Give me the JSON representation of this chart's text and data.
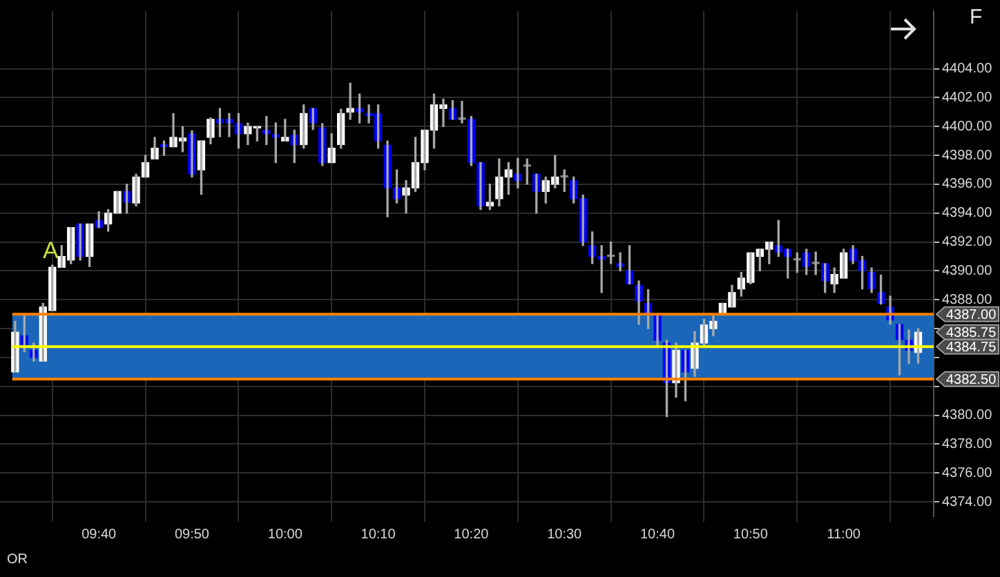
{
  "chart_data": {
    "type": "candlestick",
    "categories": [
      null,
      null,
      null,
      null,
      null,
      null,
      null,
      null,
      null,
      "09:40",
      null,
      null,
      null,
      null,
      null,
      null,
      null,
      null,
      null,
      "09:50",
      null,
      null,
      null,
      null,
      null,
      null,
      null,
      null,
      null,
      "10:00",
      null,
      null,
      null,
      null,
      null,
      null,
      null,
      null,
      null,
      "10:10",
      null,
      null,
      null,
      null,
      null,
      null,
      null,
      null,
      null,
      "10:20",
      null,
      null,
      null,
      null,
      null,
      null,
      null,
      null,
      null,
      "10:30",
      null,
      null,
      null,
      null,
      null,
      null,
      null,
      null,
      null,
      "10:40",
      null,
      null,
      null,
      null,
      null,
      null,
      null,
      null,
      null,
      "10:50",
      null,
      null,
      null,
      null,
      null,
      null,
      null,
      null,
      null,
      "11:00",
      null,
      null,
      null,
      null,
      null,
      null,
      null,
      null
    ],
    "ohlc": [
      [
        4383.0,
        4386.5,
        4383.0,
        4385.75
      ],
      [
        4385.5,
        4387.0,
        4384.4,
        4384.9
      ],
      [
        4384.5,
        4385.0,
        4383.75,
        4384.0
      ],
      [
        4383.75,
        4387.75,
        4383.75,
        4387.5
      ],
      [
        4387.25,
        4390.4,
        4387.25,
        4390.25
      ],
      [
        4390.25,
        4391.75,
        4390.25,
        4391.0
      ],
      [
        4390.75,
        4393.0,
        4390.5,
        4393.0
      ],
      [
        4393.25,
        4393.25,
        4390.75,
        4391.0
      ],
      [
        4391.0,
        4393.25,
        4390.3,
        4393.25
      ],
      [
        4393.5,
        4394.1,
        4393.0,
        4393.0
      ],
      [
        4393.25,
        4394.25,
        4392.75,
        4394.0
      ],
      [
        4394.0,
        4395.5,
        4394.0,
        4395.5
      ],
      [
        4395.5,
        4396.0,
        4394.0,
        4394.75
      ],
      [
        4394.7,
        4396.7,
        4394.5,
        4396.5
      ],
      [
        4396.5,
        4398.0,
        4396.5,
        4397.5
      ],
      [
        4397.75,
        4399.25,
        4397.75,
        4398.5
      ],
      [
        4398.75,
        4399.0,
        4398.0,
        4398.6
      ],
      [
        4398.6,
        4400.9,
        4398.6,
        4399.25
      ],
      [
        4399.0,
        4400.0,
        4398.25,
        4399.2
      ],
      [
        4399.5,
        4399.7,
        4396.5,
        4396.7
      ],
      [
        4397.0,
        4399.0,
        4395.3,
        4399.0
      ],
      [
        4399.25,
        4400.6,
        4398.8,
        4400.5
      ],
      [
        4400.5,
        4401.25,
        4399.3,
        4400.25
      ],
      [
        4400.5,
        4400.9,
        4399.3,
        4400.25
      ],
      [
        4400.2,
        4400.9,
        4398.5,
        4399.5
      ],
      [
        4399.5,
        4400.25,
        4398.75,
        4400.0
      ],
      [
        4399.9,
        4400.0,
        4399.0,
        4400.0
      ],
      [
        4399.75,
        4400.7,
        4398.75,
        4399.5
      ],
      [
        4399.45,
        4400.25,
        4397.5,
        4399.25
      ],
      [
        4399.0,
        4400.5,
        4399.0,
        4399.25
      ],
      [
        4399.4,
        4399.75,
        4397.5,
        4398.75
      ],
      [
        4398.75,
        4401.5,
        4398.5,
        4400.9
      ],
      [
        4401.25,
        4401.25,
        4399.8,
        4400.25
      ],
      [
        4399.9,
        4400.2,
        4397.3,
        4397.5
      ],
      [
        4397.5,
        4399.5,
        4397.5,
        4398.5
      ],
      [
        4398.75,
        4401.2,
        4398.5,
        4400.9
      ],
      [
        4401.0,
        4403.0,
        4400.5,
        4401.25
      ],
      [
        4401.25,
        4402.25,
        4400.25,
        4401.0
      ],
      [
        4400.9,
        4401.5,
        4400.25,
        4400.75
      ],
      [
        4400.9,
        4401.5,
        4398.5,
        4399.0
      ],
      [
        4398.7,
        4399.0,
        4393.75,
        4395.75
      ],
      [
        4395.75,
        4397.0,
        4394.7,
        4395.0
      ],
      [
        4395.25,
        4396.25,
        4394.0,
        4395.75
      ],
      [
        4395.75,
        4399.25,
        4395.5,
        4397.5
      ],
      [
        4397.5,
        4399.75,
        4397.0,
        4399.75
      ],
      [
        4399.75,
        4402.25,
        4398.5,
        4401.5
      ],
      [
        4401.25,
        4401.9,
        4400.0,
        4401.5
      ],
      [
        4401.25,
        4401.8,
        4400.5,
        4400.5
      ],
      [
        4400.5,
        4401.75,
        4400.25,
        4400.5
      ],
      [
        4400.5,
        4400.7,
        4397.3,
        4397.5
      ],
      [
        4397.5,
        4397.5,
        4394.25,
        4394.5
      ],
      [
        4394.5,
        4396.0,
        4394.25,
        4394.75
      ],
      [
        4395.0,
        4397.75,
        4394.5,
        4396.5
      ],
      [
        4396.5,
        4397.5,
        4395.3,
        4397.0
      ],
      [
        4396.7,
        4397.8,
        4395.75,
        4396.25
      ],
      [
        4397.25,
        4397.75,
        4396.0,
        4397.25
      ],
      [
        4396.7,
        4396.7,
        4394.0,
        4395.5
      ],
      [
        4395.5,
        4396.5,
        4394.7,
        4396.25
      ],
      [
        4396.0,
        4398.0,
        4395.75,
        4396.5
      ],
      [
        4396.5,
        4397.0,
        4395.5,
        4396.5
      ],
      [
        4396.25,
        4396.5,
        4394.7,
        4395.0
      ],
      [
        4395.0,
        4395.25,
        4391.75,
        4392.0
      ],
      [
        4391.75,
        4392.7,
        4390.5,
        4391.0
      ],
      [
        4391.0,
        4391.75,
        4388.5,
        4390.8
      ],
      [
        4391.0,
        4392.0,
        4390.5,
        4391.0
      ],
      [
        4390.5,
        4391.25,
        4390.0,
        4390.3
      ],
      [
        4390.0,
        4391.75,
        4389.1,
        4389.1
      ],
      [
        4389.0,
        4389.3,
        4386.3,
        4387.9
      ],
      [
        4387.75,
        4388.7,
        4386.0,
        4387.0
      ],
      [
        4386.9,
        4386.9,
        4384.75,
        4385.2
      ],
      [
        4385.0,
        4385.2,
        4379.9,
        4382.25
      ],
      [
        4382.25,
        4385.0,
        4381.25,
        4384.5
      ],
      [
        4384.5,
        4384.5,
        4381.0,
        4383.0
      ],
      [
        4383.25,
        4385.8,
        4382.7,
        4385.0
      ],
      [
        4385.0,
        4386.65,
        4384.8,
        4386.25
      ],
      [
        4386.0,
        4387.0,
        4385.5,
        4386.5
      ],
      [
        4387.0,
        4387.75,
        4387.0,
        4387.75
      ],
      [
        4387.5,
        4389.0,
        4387.5,
        4388.5
      ],
      [
        4388.75,
        4389.9,
        4388.25,
        4389.5
      ],
      [
        4389.2,
        4391.25,
        4389.1,
        4391.25
      ],
      [
        4391.0,
        4391.5,
        4390.0,
        4391.5
      ],
      [
        4391.5,
        4392.0,
        4390.5,
        4392.0
      ],
      [
        4391.75,
        4393.5,
        4391.0,
        4391.3
      ],
      [
        4391.5,
        4391.5,
        4389.5,
        4391.0
      ],
      [
        4390.75,
        4391.25,
        4389.9,
        4390.75
      ],
      [
        4391.25,
        4391.5,
        4389.75,
        4390.3
      ],
      [
        4390.5,
        4391.3,
        4389.75,
        4390.5
      ],
      [
        4390.5,
        4390.5,
        4388.5,
        4389.3
      ],
      [
        4389.1,
        4390.2,
        4388.5,
        4389.75
      ],
      [
        4389.5,
        4391.5,
        4389.5,
        4391.25
      ],
      [
        4391.5,
        4391.75,
        4390.5,
        4390.7
      ],
      [
        4390.7,
        4391.0,
        4388.75,
        4390.0
      ],
      [
        4389.9,
        4390.2,
        4388.5,
        4388.75
      ],
      [
        4388.5,
        4389.7,
        4387.7,
        4387.75
      ],
      [
        4387.5,
        4388.25,
        4386.3,
        4386.6
      ],
      [
        4386.3,
        4386.3,
        4382.8,
        4385.25
      ],
      [
        4385.2,
        4385.9,
        4383.6,
        4384.5
      ],
      [
        4384.35,
        4386.0,
        4383.6,
        4385.75
      ]
    ],
    "colors": [
      "#ffffff",
      "#0000ff",
      "#0000ff",
      "#ffffff",
      "#ffffff",
      "#ffffff",
      "#ffffff",
      "#0000ff",
      "#ffffff",
      "#0000ff",
      "#ffffff",
      "#ffffff",
      "#0000ff",
      "#ffffff",
      "#ffffff",
      "#ffffff",
      "#0000ff",
      "#ffffff",
      "#ffffff",
      "#0000ff",
      "#ffffff",
      "#ffffff",
      "#0000ff",
      "#0000ff",
      "#0000ff",
      "#ffffff",
      "#ffffff",
      "#0000ff",
      "#0000ff",
      "#ffffff",
      "#0000ff",
      "#ffffff",
      "#0000ff",
      "#0000ff",
      "#ffffff",
      "#ffffff",
      "#ffffff",
      "#0000ff",
      "#0000ff",
      "#0000ff",
      "#0000ff",
      "#0000ff",
      "#ffffff",
      "#ffffff",
      "#ffffff",
      "#ffffff",
      "#ffffff",
      "#0000ff",
      "#808080",
      "#0000ff",
      "#0000ff",
      "#ffffff",
      "#ffffff",
      "#ffffff",
      "#0000ff",
      "#808080",
      "#0000ff",
      "#ffffff",
      "#ffffff",
      "#808080",
      "#0000ff",
      "#0000ff",
      "#0000ff",
      "#0000ff",
      "#808080",
      "#0000ff",
      "#0000ff",
      "#0000ff",
      "#0000ff",
      "#0000ff",
      "#0000ff",
      "#ffffff",
      "#0000ff",
      "#ffffff",
      "#ffffff",
      "#ffffff",
      "#ffffff",
      "#ffffff",
      "#ffffff",
      "#ffffff",
      "#ffffff",
      "#ffffff",
      "#0000ff",
      "#0000ff",
      "#808080",
      "#0000ff",
      "#808080",
      "#0000ff",
      "#ffffff",
      "#ffffff",
      "#0000ff",
      "#0000ff",
      "#0000ff",
      "#0000ff",
      "#0000ff",
      "#0000ff",
      "#0000ff",
      "#ffffff"
    ],
    "ylim": [
      4373,
      4408
    ],
    "yticks": [
      {
        "value": 4374,
        "label": "4374.00"
      },
      {
        "value": 4376,
        "label": "4376.00"
      },
      {
        "value": 4378,
        "label": "4378.00"
      },
      {
        "value": 4380,
        "label": "4380.00"
      },
      {
        "value": 4382,
        "label": null
      },
      {
        "value": 4384,
        "label": null
      },
      {
        "value": 4386,
        "label": null
      },
      {
        "value": 4388,
        "label": "4388.00"
      },
      {
        "value": 4390,
        "label": "4390.00"
      },
      {
        "value": 4392,
        "label": "4392.00"
      },
      {
        "value": 4394,
        "label": "4394.00"
      },
      {
        "value": 4396,
        "label": "4396.00"
      },
      {
        "value": 4398,
        "label": "4398.00"
      },
      {
        "value": 4400,
        "label": "4400.00"
      },
      {
        "value": 4402,
        "label": "4402.00"
      },
      {
        "value": 4404,
        "label": "4404.00"
      }
    ],
    "bands": [
      {
        "axis": "y",
        "from": 4382.5,
        "to": 4387,
        "color": "#1b66b8"
      }
    ],
    "ref_lines": [
      {
        "axis": "y",
        "value": 4387,
        "label": "4387.00",
        "color": "#ff8000"
      },
      {
        "axis": "y",
        "value": 4384.75,
        "label": "4384.75",
        "color": "#ffff00"
      },
      {
        "axis": "y",
        "value": 4382.5,
        "label": "4382.50",
        "color": "#ff8000"
      }
    ],
    "annotations": [
      "A",
      "OR",
      "F",
      "4385.75"
    ],
    "grid": true,
    "legend": false
  }
}
